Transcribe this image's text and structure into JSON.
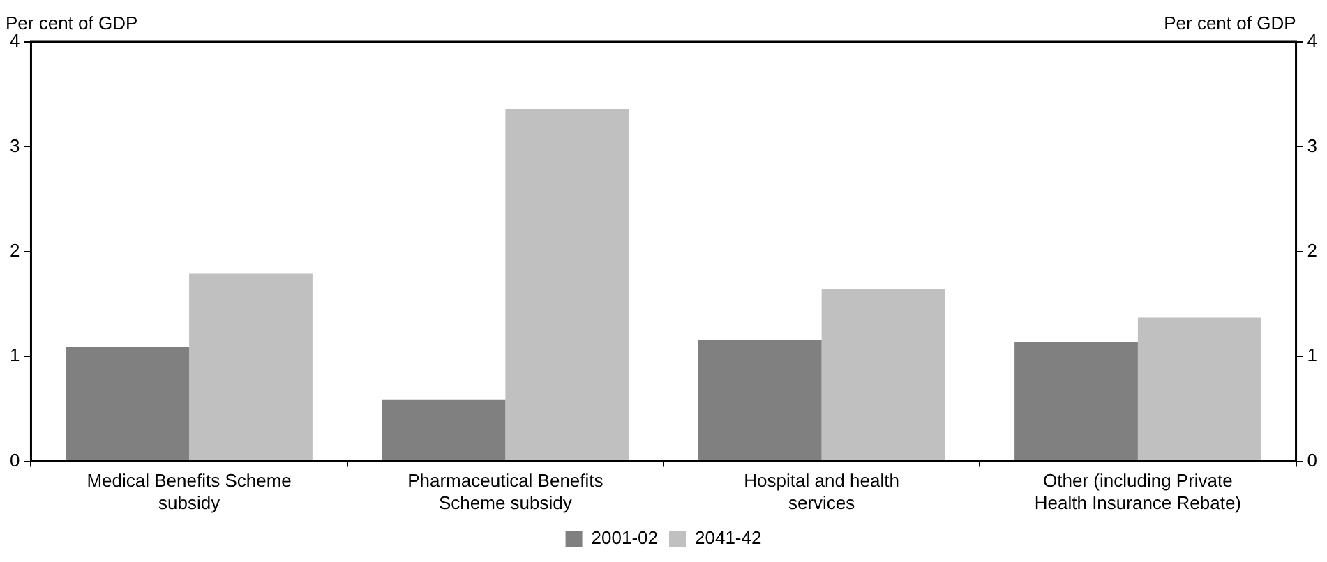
{
  "chart_data": {
    "type": "bar",
    "ylabel": "Per cent of GDP",
    "y2label": "Per cent of GDP",
    "categories": [
      "Medical Benefits Scheme subsidy",
      "Pharmaceutical Benefits Scheme subsidy",
      "Hospital and health services",
      "Other (including Private Health Insurance Rebate)"
    ],
    "series": [
      {
        "name": "2001-02",
        "color": "#808080",
        "values": [
          1.09,
          0.59,
          1.16,
          1.14
        ]
      },
      {
        "name": "2041-42",
        "color": "#c0c0c0",
        "values": [
          1.79,
          3.36,
          1.64,
          1.37
        ]
      }
    ],
    "ylim": [
      0,
      4
    ],
    "yticks": [
      0,
      1,
      2,
      3,
      4
    ],
    "y2lim": [
      0,
      4
    ],
    "y2ticks": [
      0,
      1,
      2,
      3,
      4
    ],
    "grid": false,
    "legend": "bottom"
  }
}
